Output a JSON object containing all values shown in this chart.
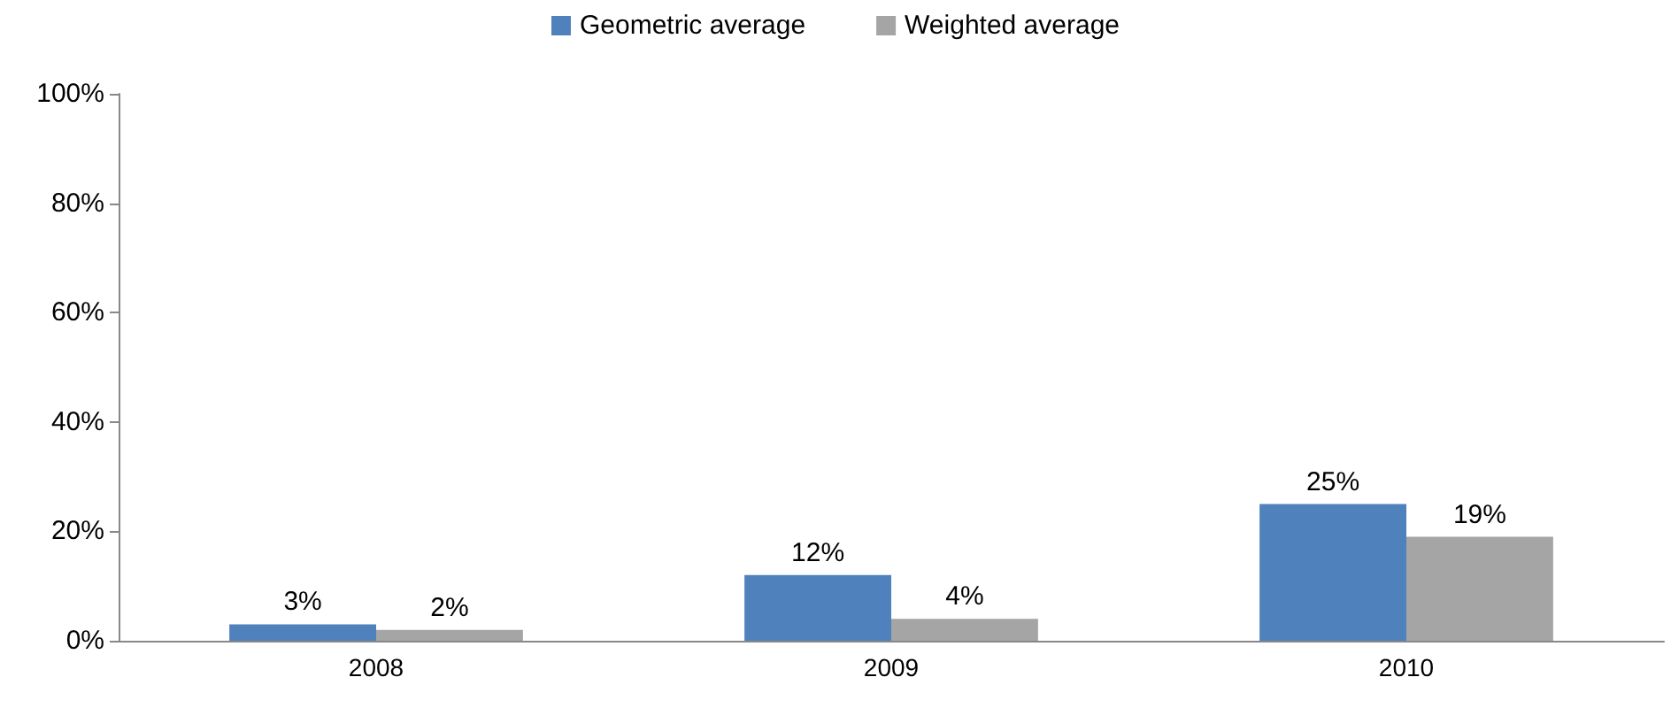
{
  "chart_data": {
    "type": "bar",
    "categories": [
      "2008",
      "2009",
      "2010"
    ],
    "series": [
      {
        "name": "Geometric average",
        "color": "#4f81bd",
        "values": [
          3,
          12,
          25
        ],
        "value_labels": [
          "3%",
          "12%",
          "25%"
        ]
      },
      {
        "name": "Weighted average",
        "color": "#a5a5a5",
        "values": [
          2,
          4,
          19
        ],
        "value_labels": [
          "2%",
          "4%",
          "19%"
        ]
      }
    ],
    "ylim": [
      0,
      100
    ],
    "yticks": [
      {
        "value": 0,
        "label": "0%"
      },
      {
        "value": 20,
        "label": "20%"
      },
      {
        "value": 40,
        "label": "40%"
      },
      {
        "value": 60,
        "label": "60%"
      },
      {
        "value": 80,
        "label": "80%"
      },
      {
        "value": 100,
        "label": "100%"
      }
    ],
    "grid": false,
    "legend": "top"
  }
}
